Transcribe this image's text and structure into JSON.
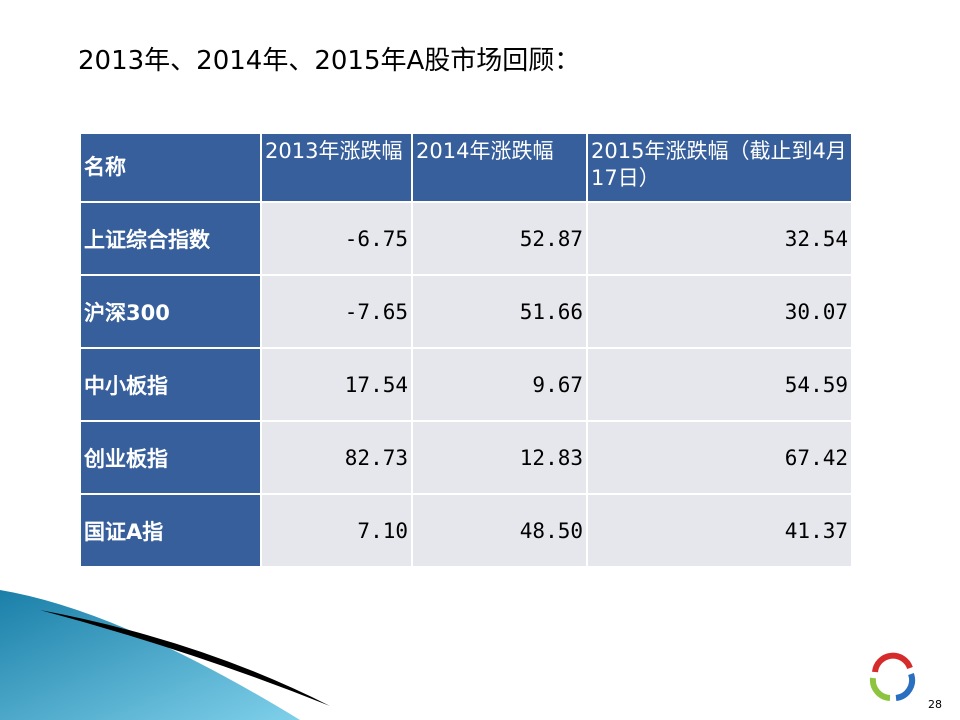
{
  "header": {
    "title": "2013年、2014年、2015年A股市场回顾："
  },
  "table": {
    "columns": [
      "名称",
      "2013年涨跌幅",
      "2014年涨跌幅",
      "2015年涨跌幅（截止到4月17日）"
    ],
    "rows": [
      [
        "上证综合指数",
        "-6.75",
        "52.87",
        "32.54"
      ],
      [
        "沪深300",
        "-7.65",
        "51.66",
        "30.07"
      ],
      [
        "中小板指",
        "17.54",
        "9.67",
        "54.59"
      ],
      [
        "创业板指",
        "82.73",
        "12.83",
        "67.42"
      ],
      [
        "国证A指",
        "7.10",
        "48.50",
        "41.37"
      ]
    ]
  },
  "footer": {
    "page_number": "28"
  }
}
